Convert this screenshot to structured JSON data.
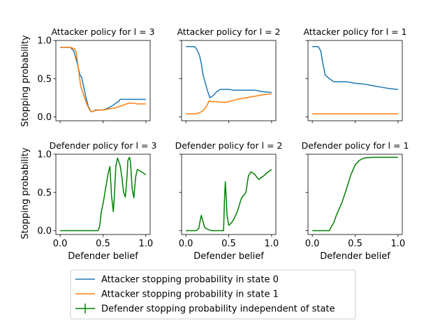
{
  "chart_data": {
    "type": "line",
    "xlabel": "Defender belief",
    "ylabel": "Stopping probability",
    "xlim": [
      -0.05,
      1.05
    ],
    "ylim": [
      -0.05,
      1.0
    ],
    "xticks": [
      "0.0",
      "0.5",
      "1.0"
    ],
    "yticks": [
      "0.0",
      "0.5",
      "1.0"
    ],
    "colors": {
      "attacker_state0": "#1f77b4",
      "attacker_state1": "#ff7f0e",
      "defender": "#008000"
    },
    "legend": {
      "placement": "bottom-center",
      "entries": [
        "Attacker stopping probability in state 0",
        "Attacker stopping probability in state 1",
        "Defender stopping probability independent of state"
      ]
    },
    "subplots": [
      {
        "title": "Attacker policy for l = 3",
        "series": [
          {
            "name": "Attacker stopping probability in state 0",
            "color": "#1f77b4",
            "points": [
              [
                0,
                0.91
              ],
              [
                0.12,
                0.91
              ],
              [
                0.16,
                0.86
              ],
              [
                0.2,
                0.7
              ],
              [
                0.23,
                0.55
              ],
              [
                0.25,
                0.52
              ],
              [
                0.27,
                0.42
              ],
              [
                0.3,
                0.26
              ],
              [
                0.33,
                0.13
              ],
              [
                0.36,
                0.07
              ],
              [
                0.38,
                0.07
              ],
              [
                0.41,
                0.09
              ],
              [
                0.45,
                0.09
              ],
              [
                0.5,
                0.09
              ],
              [
                0.55,
                0.11
              ],
              [
                0.6,
                0.14
              ],
              [
                0.65,
                0.18
              ],
              [
                0.68,
                0.2
              ],
              [
                0.7,
                0.23
              ],
              [
                0.8,
                0.23
              ],
              [
                1.0,
                0.23
              ]
            ]
          },
          {
            "name": "Attacker stopping probability in state 1",
            "color": "#ff7f0e",
            "points": [
              [
                0,
                0.91
              ],
              [
                0.12,
                0.91
              ],
              [
                0.17,
                0.89
              ],
              [
                0.19,
                0.83
              ],
              [
                0.21,
                0.65
              ],
              [
                0.24,
                0.4
              ],
              [
                0.27,
                0.3
              ],
              [
                0.3,
                0.2
              ],
              [
                0.33,
                0.12
              ],
              [
                0.35,
                0.08
              ],
              [
                0.37,
                0.07
              ],
              [
                0.4,
                0.08
              ],
              [
                0.45,
                0.09
              ],
              [
                0.5,
                0.09
              ],
              [
                0.55,
                0.1
              ],
              [
                0.6,
                0.11
              ],
              [
                0.65,
                0.12
              ],
              [
                0.7,
                0.14
              ],
              [
                0.75,
                0.16
              ],
              [
                0.8,
                0.18
              ],
              [
                0.85,
                0.18
              ],
              [
                0.9,
                0.17
              ],
              [
                1.0,
                0.17
              ]
            ]
          }
        ]
      },
      {
        "title": "Attacker policy for l = 2",
        "series": [
          {
            "name": "Attacker stopping probability in state 0",
            "color": "#1f77b4",
            "points": [
              [
                0,
                0.92
              ],
              [
                0.1,
                0.92
              ],
              [
                0.13,
                0.88
              ],
              [
                0.16,
                0.8
              ],
              [
                0.18,
                0.7
              ],
              [
                0.2,
                0.55
              ],
              [
                0.22,
                0.47
              ],
              [
                0.25,
                0.35
              ],
              [
                0.28,
                0.25
              ],
              [
                0.32,
                0.28
              ],
              [
                0.36,
                0.33
              ],
              [
                0.4,
                0.36
              ],
              [
                0.5,
                0.36
              ],
              [
                0.55,
                0.35
              ],
              [
                0.8,
                0.35
              ],
              [
                0.85,
                0.34
              ],
              [
                0.9,
                0.33
              ],
              [
                1.0,
                0.32
              ]
            ]
          },
          {
            "name": "Attacker stopping probability in state 1",
            "color": "#ff7f0e",
            "points": [
              [
                0,
                0.04
              ],
              [
                0.1,
                0.04
              ],
              [
                0.15,
                0.05
              ],
              [
                0.2,
                0.08
              ],
              [
                0.23,
                0.12
              ],
              [
                0.25,
                0.16
              ],
              [
                0.27,
                0.21
              ],
              [
                0.3,
                0.2
              ],
              [
                0.35,
                0.2
              ],
              [
                0.45,
                0.19
              ],
              [
                0.5,
                0.2
              ],
              [
                0.6,
                0.23
              ],
              [
                0.7,
                0.25
              ],
              [
                0.8,
                0.27
              ],
              [
                0.9,
                0.29
              ],
              [
                1.0,
                0.3
              ]
            ]
          }
        ]
      },
      {
        "title": "Attacker policy for l = 1",
        "series": [
          {
            "name": "Attacker stopping probability in state 0",
            "color": "#1f77b4",
            "points": [
              [
                0,
                0.92
              ],
              [
                0.07,
                0.92
              ],
              [
                0.1,
                0.86
              ],
              [
                0.12,
                0.72
              ],
              [
                0.15,
                0.55
              ],
              [
                0.2,
                0.5
              ],
              [
                0.25,
                0.46
              ],
              [
                0.4,
                0.46
              ],
              [
                0.5,
                0.44
              ],
              [
                0.6,
                0.43
              ],
              [
                0.7,
                0.41
              ],
              [
                0.8,
                0.39
              ],
              [
                0.9,
                0.37
              ],
              [
                1.0,
                0.36
              ]
            ]
          },
          {
            "name": "Attacker stopping probability in state 1",
            "color": "#ff7f0e",
            "points": [
              [
                0,
                0.04
              ],
              [
                1.0,
                0.04
              ]
            ]
          }
        ]
      },
      {
        "title": "Defender policy for l = 3",
        "series": [
          {
            "name": "Defender stopping probability independent of state",
            "color": "#008000",
            "points": [
              [
                0,
                0
              ],
              [
                0.44,
                0
              ],
              [
                0.46,
                0.05
              ],
              [
                0.48,
                0.25
              ],
              [
                0.5,
                0.35
              ],
              [
                0.53,
                0.55
              ],
              [
                0.56,
                0.75
              ],
              [
                0.58,
                0.84
              ],
              [
                0.6,
                0.45
              ],
              [
                0.62,
                0.25
              ],
              [
                0.63,
                0.4
              ],
              [
                0.65,
                0.85
              ],
              [
                0.67,
                0.95
              ],
              [
                0.7,
                0.85
              ],
              [
                0.72,
                0.7
              ],
              [
                0.74,
                0.5
              ],
              [
                0.76,
                0.44
              ],
              [
                0.78,
                0.7
              ],
              [
                0.79,
                0.92
              ],
              [
                0.81,
                0.96
              ],
              [
                0.82,
                0.9
              ],
              [
                0.84,
                0.55
              ],
              [
                0.86,
                0.43
              ],
              [
                0.88,
                0.7
              ],
              [
                0.9,
                0.8
              ],
              [
                0.95,
                0.77
              ],
              [
                1.0,
                0.73
              ]
            ]
          }
        ]
      },
      {
        "title": "Defender policy for l = 2",
        "series": [
          {
            "name": "Defender stopping probability independent of state",
            "color": "#008000",
            "points": [
              [
                0,
                0
              ],
              [
                0.12,
                0
              ],
              [
                0.15,
                0.03
              ],
              [
                0.17,
                0.15
              ],
              [
                0.18,
                0.2
              ],
              [
                0.2,
                0.12
              ],
              [
                0.22,
                0.04
              ],
              [
                0.25,
                0.02
              ],
              [
                0.3,
                0
              ],
              [
                0.44,
                0
              ],
              [
                0.45,
                0.4
              ],
              [
                0.46,
                0.64
              ],
              [
                0.47,
                0.45
              ],
              [
                0.48,
                0.2
              ],
              [
                0.5,
                0.07
              ],
              [
                0.53,
                0.1
              ],
              [
                0.56,
                0.15
              ],
              [
                0.6,
                0.25
              ],
              [
                0.65,
                0.43
              ],
              [
                0.7,
                0.5
              ],
              [
                0.73,
                0.72
              ],
              [
                0.76,
                0.77
              ],
              [
                0.8,
                0.74
              ],
              [
                0.85,
                0.67
              ],
              [
                0.9,
                0.71
              ],
              [
                0.95,
                0.76
              ],
              [
                1.0,
                0.8
              ]
            ]
          }
        ]
      },
      {
        "title": "Defender policy for l = 1",
        "series": [
          {
            "name": "Defender stopping probability independent of state",
            "color": "#008000",
            "points": [
              [
                0,
                0
              ],
              [
                0.2,
                0
              ],
              [
                0.22,
                0.05
              ],
              [
                0.25,
                0.1
              ],
              [
                0.28,
                0.2
              ],
              [
                0.3,
                0.25
              ],
              [
                0.35,
                0.38
              ],
              [
                0.4,
                0.55
              ],
              [
                0.45,
                0.73
              ],
              [
                0.5,
                0.86
              ],
              [
                0.55,
                0.92
              ],
              [
                0.6,
                0.95
              ],
              [
                0.7,
                0.96
              ],
              [
                1.0,
                0.96
              ]
            ]
          }
        ]
      }
    ]
  }
}
